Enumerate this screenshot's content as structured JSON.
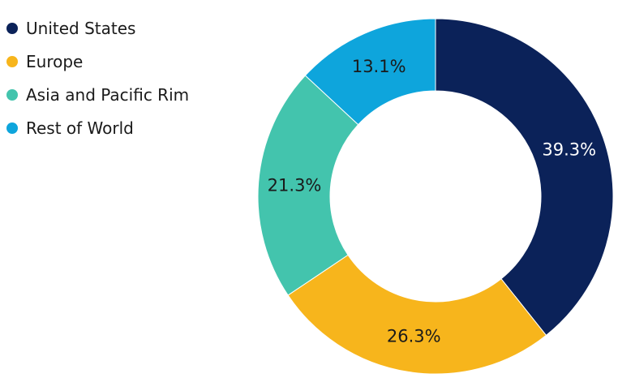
{
  "chart_data": {
    "type": "pie",
    "variant": "donut",
    "title": "",
    "categories": [
      "United States",
      "Europe",
      "Asia and Pacific Rim",
      "Rest of World"
    ],
    "values": [
      39.3,
      26.3,
      21.3,
      13.1
    ],
    "labels": [
      "39.3%",
      "26.3%",
      "21.3%",
      "13.1%"
    ],
    "colors": [
      "#0b2259",
      "#f7b51c",
      "#43c4ad",
      "#0ea5dc"
    ],
    "label_colors": [
      "#ffffff",
      "#1a1a1a",
      "#1a1a1a",
      "#1a1a1a"
    ],
    "start": "12 o'clock",
    "direction": "clockwise",
    "legend": "top-left"
  }
}
